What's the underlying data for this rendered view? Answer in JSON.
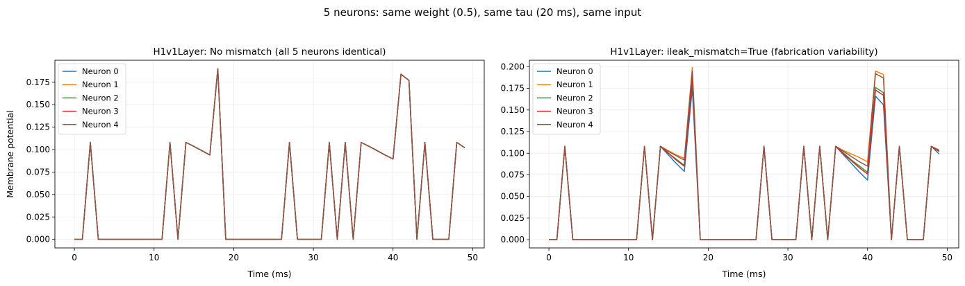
{
  "figure": {
    "suptitle": "5 neurons: same weight (0.5), same tau (20 ms), same input"
  },
  "colors": [
    "#1f77b4",
    "#ff7f0e",
    "#2ca02c",
    "#d62728",
    "#8c564b"
  ],
  "chart_data": [
    {
      "type": "line",
      "title": "H1v1Layer: No mismatch (all 5 neurons identical)",
      "xlabel": "Time (ms)",
      "ylabel": "Membrane potential",
      "xlim": [
        -2.45,
        51.45
      ],
      "ylim": [
        -0.0095,
        0.1995
      ],
      "xticks": [
        0,
        10,
        20,
        30,
        40,
        50
      ],
      "xtick_labels": [
        "0",
        "10",
        "20",
        "30",
        "40",
        "50"
      ],
      "yticks": [
        0.0,
        0.025,
        0.05,
        0.075,
        0.1,
        0.125,
        0.15,
        0.175
      ],
      "ytick_labels": [
        "0.000",
        "0.025",
        "0.050",
        "0.075",
        "0.100",
        "0.125",
        "0.150",
        "0.175"
      ],
      "grid": true,
      "legend_position": "upper-left",
      "x": [
        0,
        1,
        2,
        3,
        4,
        5,
        6,
        7,
        8,
        9,
        10,
        11,
        12,
        13,
        14,
        15,
        16,
        17,
        18,
        19,
        20,
        21,
        22,
        23,
        24,
        25,
        26,
        27,
        28,
        29,
        30,
        31,
        32,
        33,
        34,
        35,
        36,
        37,
        38,
        39,
        40,
        41,
        42,
        43,
        44,
        45,
        46,
        47,
        48,
        49
      ],
      "series": [
        {
          "name": "Neuron 0",
          "values": [
            0,
            0,
            0.108,
            0,
            0,
            0,
            0,
            0,
            0,
            0,
            0,
            0,
            0.108,
            0,
            0.108,
            0.1035,
            0.0988,
            0.094,
            0.19,
            0,
            0,
            0,
            0,
            0,
            0,
            0,
            0,
            0.108,
            0,
            0,
            0,
            0,
            0.108,
            0,
            0.108,
            0,
            0.108,
            0.1035,
            0.0988,
            0.094,
            0.0895,
            0.184,
            0.177,
            0,
            0.108,
            0,
            0,
            0,
            0.108,
            0.102
          ]
        },
        {
          "name": "Neuron 1",
          "values": [
            0,
            0,
            0.108,
            0,
            0,
            0,
            0,
            0,
            0,
            0,
            0,
            0,
            0.108,
            0,
            0.108,
            0.1035,
            0.0988,
            0.094,
            0.19,
            0,
            0,
            0,
            0,
            0,
            0,
            0,
            0,
            0.108,
            0,
            0,
            0,
            0,
            0.108,
            0,
            0.108,
            0,
            0.108,
            0.1035,
            0.0988,
            0.094,
            0.0895,
            0.184,
            0.177,
            0,
            0.108,
            0,
            0,
            0,
            0.108,
            0.102
          ]
        },
        {
          "name": "Neuron 2",
          "values": [
            0,
            0,
            0.108,
            0,
            0,
            0,
            0,
            0,
            0,
            0,
            0,
            0,
            0.108,
            0,
            0.108,
            0.1035,
            0.0988,
            0.094,
            0.19,
            0,
            0,
            0,
            0,
            0,
            0,
            0,
            0,
            0.108,
            0,
            0,
            0,
            0,
            0.108,
            0,
            0.108,
            0,
            0.108,
            0.1035,
            0.0988,
            0.094,
            0.0895,
            0.184,
            0.177,
            0,
            0.108,
            0,
            0,
            0,
            0.108,
            0.102
          ]
        },
        {
          "name": "Neuron 3",
          "values": [
            0,
            0,
            0.108,
            0,
            0,
            0,
            0,
            0,
            0,
            0,
            0,
            0,
            0.108,
            0,
            0.108,
            0.1035,
            0.0988,
            0.094,
            0.19,
            0,
            0,
            0,
            0,
            0,
            0,
            0,
            0,
            0.108,
            0,
            0,
            0,
            0,
            0.108,
            0,
            0.108,
            0,
            0.108,
            0.1035,
            0.0988,
            0.094,
            0.0895,
            0.184,
            0.177,
            0,
            0.108,
            0,
            0,
            0,
            0.108,
            0.102
          ]
        },
        {
          "name": "Neuron 4",
          "values": [
            0,
            0,
            0.108,
            0,
            0,
            0,
            0,
            0,
            0,
            0,
            0,
            0,
            0.108,
            0,
            0.108,
            0.1035,
            0.0988,
            0.094,
            0.19,
            0,
            0,
            0,
            0,
            0,
            0,
            0,
            0,
            0.108,
            0,
            0,
            0,
            0,
            0.108,
            0,
            0.108,
            0,
            0.108,
            0.1035,
            0.0988,
            0.094,
            0.0895,
            0.184,
            0.177,
            0,
            0.108,
            0,
            0,
            0,
            0.108,
            0.102
          ]
        }
      ]
    },
    {
      "type": "line",
      "title": "H1v1Layer: ileak_mismatch=True (fabrication variability)",
      "xlabel": "Time (ms)",
      "ylabel": "",
      "xlim": [
        -2.45,
        51.45
      ],
      "ylim": [
        -0.0095,
        0.2075
      ],
      "xticks": [
        0,
        10,
        20,
        30,
        40,
        50
      ],
      "xtick_labels": [
        "0",
        "10",
        "20",
        "30",
        "40",
        "50"
      ],
      "yticks": [
        0.0,
        0.025,
        0.05,
        0.075,
        0.1,
        0.125,
        0.15,
        0.175,
        0.2
      ],
      "ytick_labels": [
        "0.000",
        "0.025",
        "0.050",
        "0.075",
        "0.100",
        "0.125",
        "0.150",
        "0.175",
        "0.200"
      ],
      "grid": true,
      "legend_position": "upper-left",
      "x": [
        0,
        1,
        2,
        3,
        4,
        5,
        6,
        7,
        8,
        9,
        10,
        11,
        12,
        13,
        14,
        15,
        16,
        17,
        18,
        19,
        20,
        21,
        22,
        23,
        24,
        25,
        26,
        27,
        28,
        29,
        30,
        31,
        32,
        33,
        34,
        35,
        36,
        37,
        38,
        39,
        40,
        41,
        42,
        43,
        44,
        45,
        46,
        47,
        48,
        49
      ],
      "series": [
        {
          "name": "Neuron 0",
          "values": [
            0,
            0,
            0.108,
            0,
            0,
            0,
            0,
            0,
            0,
            0,
            0,
            0,
            0.108,
            0,
            0.108,
            0.098,
            0.088,
            0.079,
            0.175,
            0,
            0,
            0,
            0,
            0,
            0,
            0,
            0,
            0.108,
            0,
            0,
            0,
            0,
            0.108,
            0,
            0.108,
            0,
            0.108,
            0.098,
            0.088,
            0.078,
            0.069,
            0.166,
            0.156,
            0,
            0.108,
            0,
            0,
            0,
            0.108,
            0.099
          ]
        },
        {
          "name": "Neuron 1",
          "values": [
            0,
            0,
            0.108,
            0,
            0,
            0,
            0,
            0,
            0,
            0,
            0,
            0,
            0.108,
            0,
            0.108,
            0.103,
            0.098,
            0.094,
            0.199,
            0,
            0,
            0,
            0,
            0,
            0,
            0,
            0,
            0.108,
            0,
            0,
            0,
            0,
            0.108,
            0,
            0.108,
            0,
            0.108,
            0.103,
            0.099,
            0.095,
            0.09,
            0.195,
            0.191,
            0,
            0.108,
            0,
            0,
            0,
            0.108,
            0.104
          ]
        },
        {
          "name": "Neuron 2",
          "values": [
            0,
            0,
            0.108,
            0,
            0,
            0,
            0,
            0,
            0,
            0,
            0,
            0,
            0.108,
            0,
            0.108,
            0.1,
            0.093,
            0.086,
            0.187,
            0,
            0,
            0,
            0,
            0,
            0,
            0,
            0,
            0.108,
            0,
            0,
            0,
            0,
            0.108,
            0,
            0.108,
            0,
            0.108,
            0.1,
            0.092,
            0.085,
            0.078,
            0.176,
            0.17,
            0,
            0.108,
            0,
            0,
            0,
            0.108,
            0.102
          ]
        },
        {
          "name": "Neuron 3",
          "values": [
            0,
            0,
            0.108,
            0,
            0,
            0,
            0,
            0,
            0,
            0,
            0,
            0,
            0.108,
            0,
            0.108,
            0.1,
            0.092,
            0.085,
            0.185,
            0,
            0,
            0,
            0,
            0,
            0,
            0,
            0,
            0.108,
            0,
            0,
            0,
            0,
            0.108,
            0,
            0.108,
            0,
            0.108,
            0.099,
            0.091,
            0.083,
            0.076,
            0.173,
            0.167,
            0,
            0.108,
            0,
            0,
            0,
            0.108,
            0.102
          ]
        },
        {
          "name": "Neuron 4",
          "values": [
            0,
            0,
            0.108,
            0,
            0,
            0,
            0,
            0,
            0,
            0,
            0,
            0,
            0.108,
            0,
            0.108,
            0.102,
            0.097,
            0.092,
            0.195,
            0,
            0,
            0,
            0,
            0,
            0,
            0,
            0,
            0.108,
            0,
            0,
            0,
            0,
            0.108,
            0,
            0.108,
            0,
            0.108,
            0.102,
            0.096,
            0.09,
            0.085,
            0.192,
            0.187,
            0,
            0.108,
            0,
            0,
            0,
            0.108,
            0.103
          ]
        }
      ]
    }
  ]
}
